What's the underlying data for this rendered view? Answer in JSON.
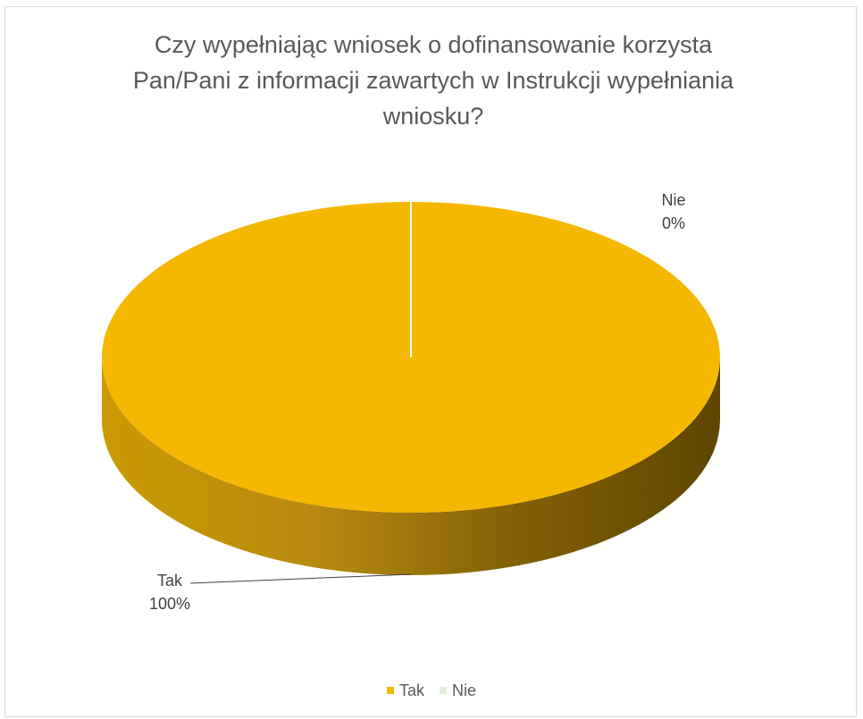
{
  "chart_data": {
    "type": "pie",
    "style": "3d",
    "title_lines": [
      "Czy wypełniając wniosek o dofinansowanie korzysta",
      "Pan/Pani z informacji zawartych w Instrukcji wypełniania",
      "wniosku?"
    ],
    "categories": [
      "Tak",
      "Nie"
    ],
    "values": [
      100,
      0
    ],
    "value_labels": [
      "100%",
      "0%"
    ],
    "colors": [
      "#F5B800",
      "#E2EFDA"
    ],
    "legend_position": "bottom"
  }
}
